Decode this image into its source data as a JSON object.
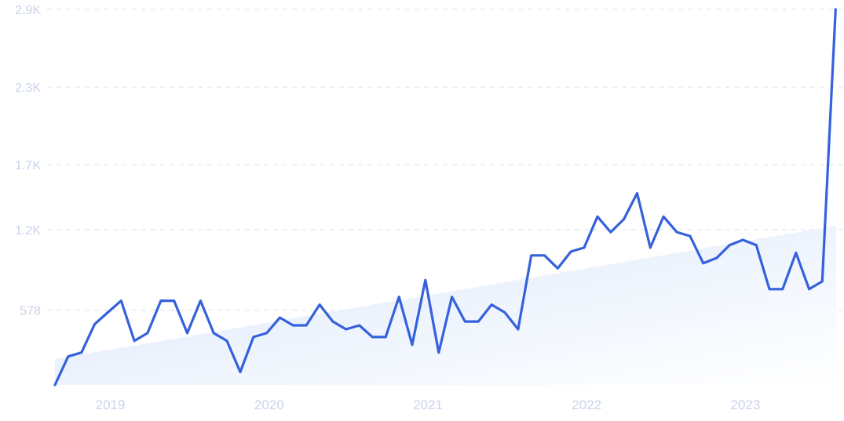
{
  "colors": {
    "line": "#3561dc",
    "trend_fill_start": "#dce8fb",
    "trend_fill_end": "#ffffff",
    "tick_text": "#c9d3ea",
    "grid": "#dde3ee"
  },
  "chart_data": {
    "type": "line",
    "title": "",
    "xlabel": "",
    "ylabel": "",
    "grid": "horizontal dashed",
    "ylim": [
      0,
      2900
    ],
    "y_ticks": [
      {
        "value": 578,
        "label": "578"
      },
      {
        "value": 1200,
        "label": "1.2K"
      },
      {
        "value": 1700,
        "label": "1.7K"
      },
      {
        "value": 2300,
        "label": "2.3K"
      },
      {
        "value": 2900,
        "label": "2.9K"
      }
    ],
    "x_ticks": [
      {
        "value": 2019.0,
        "label": "2019"
      },
      {
        "value": 2020.0,
        "label": "2020"
      },
      {
        "value": 2021.0,
        "label": "2021"
      },
      {
        "value": 2022.0,
        "label": "2022"
      },
      {
        "value": 2023.0,
        "label": "2023"
      }
    ],
    "xlim": [
      2018.75,
      2023.7
    ],
    "trend": {
      "x": [
        2018.75,
        2023.67
      ],
      "y": [
        200,
        1230
      ]
    },
    "x": [
      2018.75,
      2018.833,
      2018.917,
      2019.0,
      2019.083,
      2019.167,
      2019.25,
      2019.333,
      2019.417,
      2019.5,
      2019.583,
      2019.667,
      2019.75,
      2019.833,
      2019.917,
      2020.0,
      2020.083,
      2020.167,
      2020.25,
      2020.333,
      2020.417,
      2020.5,
      2020.583,
      2020.667,
      2020.75,
      2020.833,
      2020.917,
      2021.0,
      2021.083,
      2021.167,
      2021.25,
      2021.333,
      2021.417,
      2021.5,
      2021.583,
      2021.667,
      2021.75,
      2021.833,
      2021.917,
      2022.0,
      2022.083,
      2022.167,
      2022.25,
      2022.333,
      2022.417,
      2022.5,
      2022.583,
      2022.667,
      2022.75,
      2022.833,
      2022.917,
      2023.0,
      2023.083,
      2023.167,
      2023.25,
      2023.333,
      2023.417,
      2023.5,
      2023.583,
      2023.667
    ],
    "series": [
      {
        "values": [
          0,
          220,
          250,
          470,
          560,
          650,
          340,
          400,
          650,
          650,
          400,
          650,
          400,
          340,
          100,
          370,
          400,
          520,
          460,
          460,
          620,
          490,
          430,
          460,
          370,
          370,
          680,
          310,
          810,
          250,
          680,
          490,
          490,
          620,
          560,
          430,
          1000,
          1000,
          900,
          1030,
          1060,
          1300,
          1180,
          1280,
          1480,
          1060,
          1300,
          1180,
          1150,
          940,
          980,
          1080,
          1120,
          1080,
          740,
          740,
          1020,
          740,
          800,
          2900
        ]
      }
    ]
  }
}
